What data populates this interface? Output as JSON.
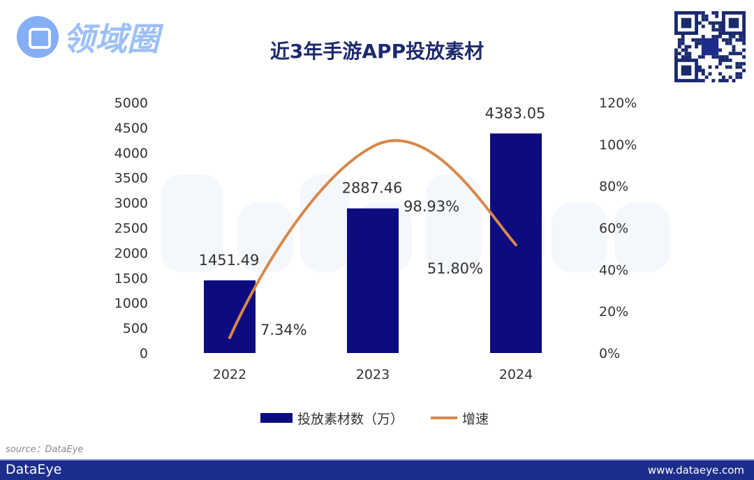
{
  "chart_data": {
    "type": "bar+line",
    "title": "近3年手游APP投放素材",
    "categories": [
      "2022",
      "2023",
      "2024"
    ],
    "series": [
      {
        "name": "投放素材数（万）",
        "type": "bar",
        "axis": "left",
        "values": [
          1451.49,
          2887.46,
          4383.05
        ],
        "labels": [
          "1451.49",
          "2887.46",
          "4383.05"
        ],
        "color": "#0c0c80"
      },
      {
        "name": "增速",
        "type": "line",
        "axis": "right",
        "values": [
          7.34,
          98.93,
          51.8
        ],
        "labels": [
          "7.34%",
          "98.93%",
          "51.80%"
        ],
        "color": "#d9874a"
      }
    ],
    "left_axis": {
      "range": [
        0,
        5000
      ],
      "ticks": [
        "0",
        "500",
        "1000",
        "1500",
        "2000",
        "2500",
        "3000",
        "3500",
        "4000",
        "4500",
        "5000"
      ]
    },
    "right_axis": {
      "range": [
        0,
        120
      ],
      "ticks": [
        "0%",
        "20%",
        "40%",
        "60%",
        "80%",
        "100%",
        "120%"
      ]
    },
    "legend": "bottom",
    "grid": false
  },
  "source": "source：DataEye",
  "footer": {
    "brand": "DataEye",
    "url": "www.dataeye.com"
  },
  "watermark": {
    "logo_text": "领域圈",
    "bg_text": "DataEye"
  }
}
